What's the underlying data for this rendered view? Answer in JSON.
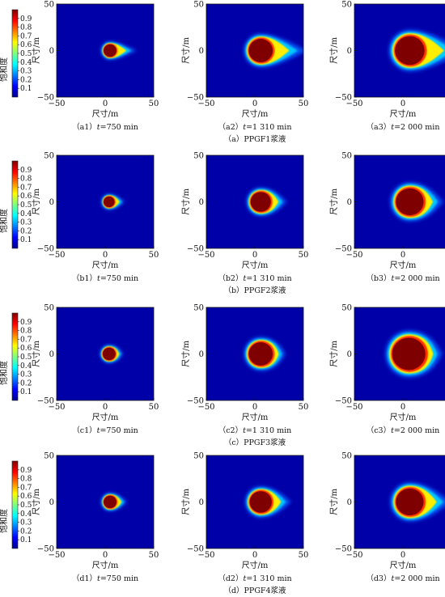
{
  "chart_data": {
    "type": "heatmap",
    "colorbar": {
      "label": "饱和度",
      "ticks": [
        "0.9",
        "0.8",
        "0.7",
        "0.6",
        "0.5",
        "0.4",
        "0.3",
        "0.2",
        "0.1"
      ],
      "range": [
        0,
        1
      ],
      "colormap": "jet"
    },
    "axes": {
      "xlabel": "尺寸/m",
      "ylabel": "尺寸/m",
      "xlim": [
        -50,
        50
      ],
      "ylim": [
        -50,
        50
      ],
      "xticks": [
        "−50",
        "0",
        "50"
      ],
      "yticks": [
        "50",
        "0",
        "−50"
      ]
    },
    "groups": [
      {
        "caption": "（a）PPGF1浆液",
        "panels": [
          {
            "label": "（a1）",
            "t_prefix": "t",
            "time": "=750 min",
            "center_x": 5,
            "radius": 7,
            "tail": 18
          },
          {
            "label": "（a2）",
            "t_prefix": "t",
            "time": "=1 310 min",
            "center_x": 6,
            "radius": 13,
            "tail": 30
          },
          {
            "label": "（a3）",
            "t_prefix": "t",
            "time": "=2 000 min",
            "center_x": 7,
            "radius": 16,
            "tail": 35
          }
        ]
      },
      {
        "caption": "（b）PPGF2浆液",
        "panels": [
          {
            "label": "（b1）",
            "t_prefix": "t",
            "time": "=750 min",
            "center_x": 4,
            "radius": 6,
            "tail": 8
          },
          {
            "label": "（b2）",
            "t_prefix": "t",
            "time": "=1 310 min",
            "center_x": 6,
            "radius": 11,
            "tail": 12
          },
          {
            "label": "（b3）",
            "t_prefix": "t",
            "time": "=2 000 min",
            "center_x": 7,
            "radius": 15,
            "tail": 14
          }
        ]
      },
      {
        "caption": "（c）PPGF3浆液",
        "panels": [
          {
            "label": "（c1）",
            "t_prefix": "t",
            "time": "=750 min",
            "center_x": 4,
            "radius": 7,
            "tail": 5
          },
          {
            "label": "（c2）",
            "t_prefix": "t",
            "time": "=1 310 min",
            "center_x": 6,
            "radius": 13,
            "tail": 8
          },
          {
            "label": "（c3）",
            "t_prefix": "t",
            "time": "=2 000 min",
            "center_x": 6,
            "radius": 18,
            "tail": 10
          }
        ]
      },
      {
        "caption": "（d）PPGF4浆液",
        "panels": [
          {
            "label": "（d1）",
            "t_prefix": "t",
            "time": "=750 min",
            "center_x": 5,
            "radius": 7,
            "tail": 8
          },
          {
            "label": "（d2）",
            "t_prefix": "t",
            "time": "=1 310 min",
            "center_x": 6,
            "radius": 12,
            "tail": 15
          },
          {
            "label": "（d3）",
            "t_prefix": "t",
            "time": "=2 000 min",
            "center_x": 7,
            "radius": 15,
            "tail": 22
          }
        ]
      }
    ]
  }
}
